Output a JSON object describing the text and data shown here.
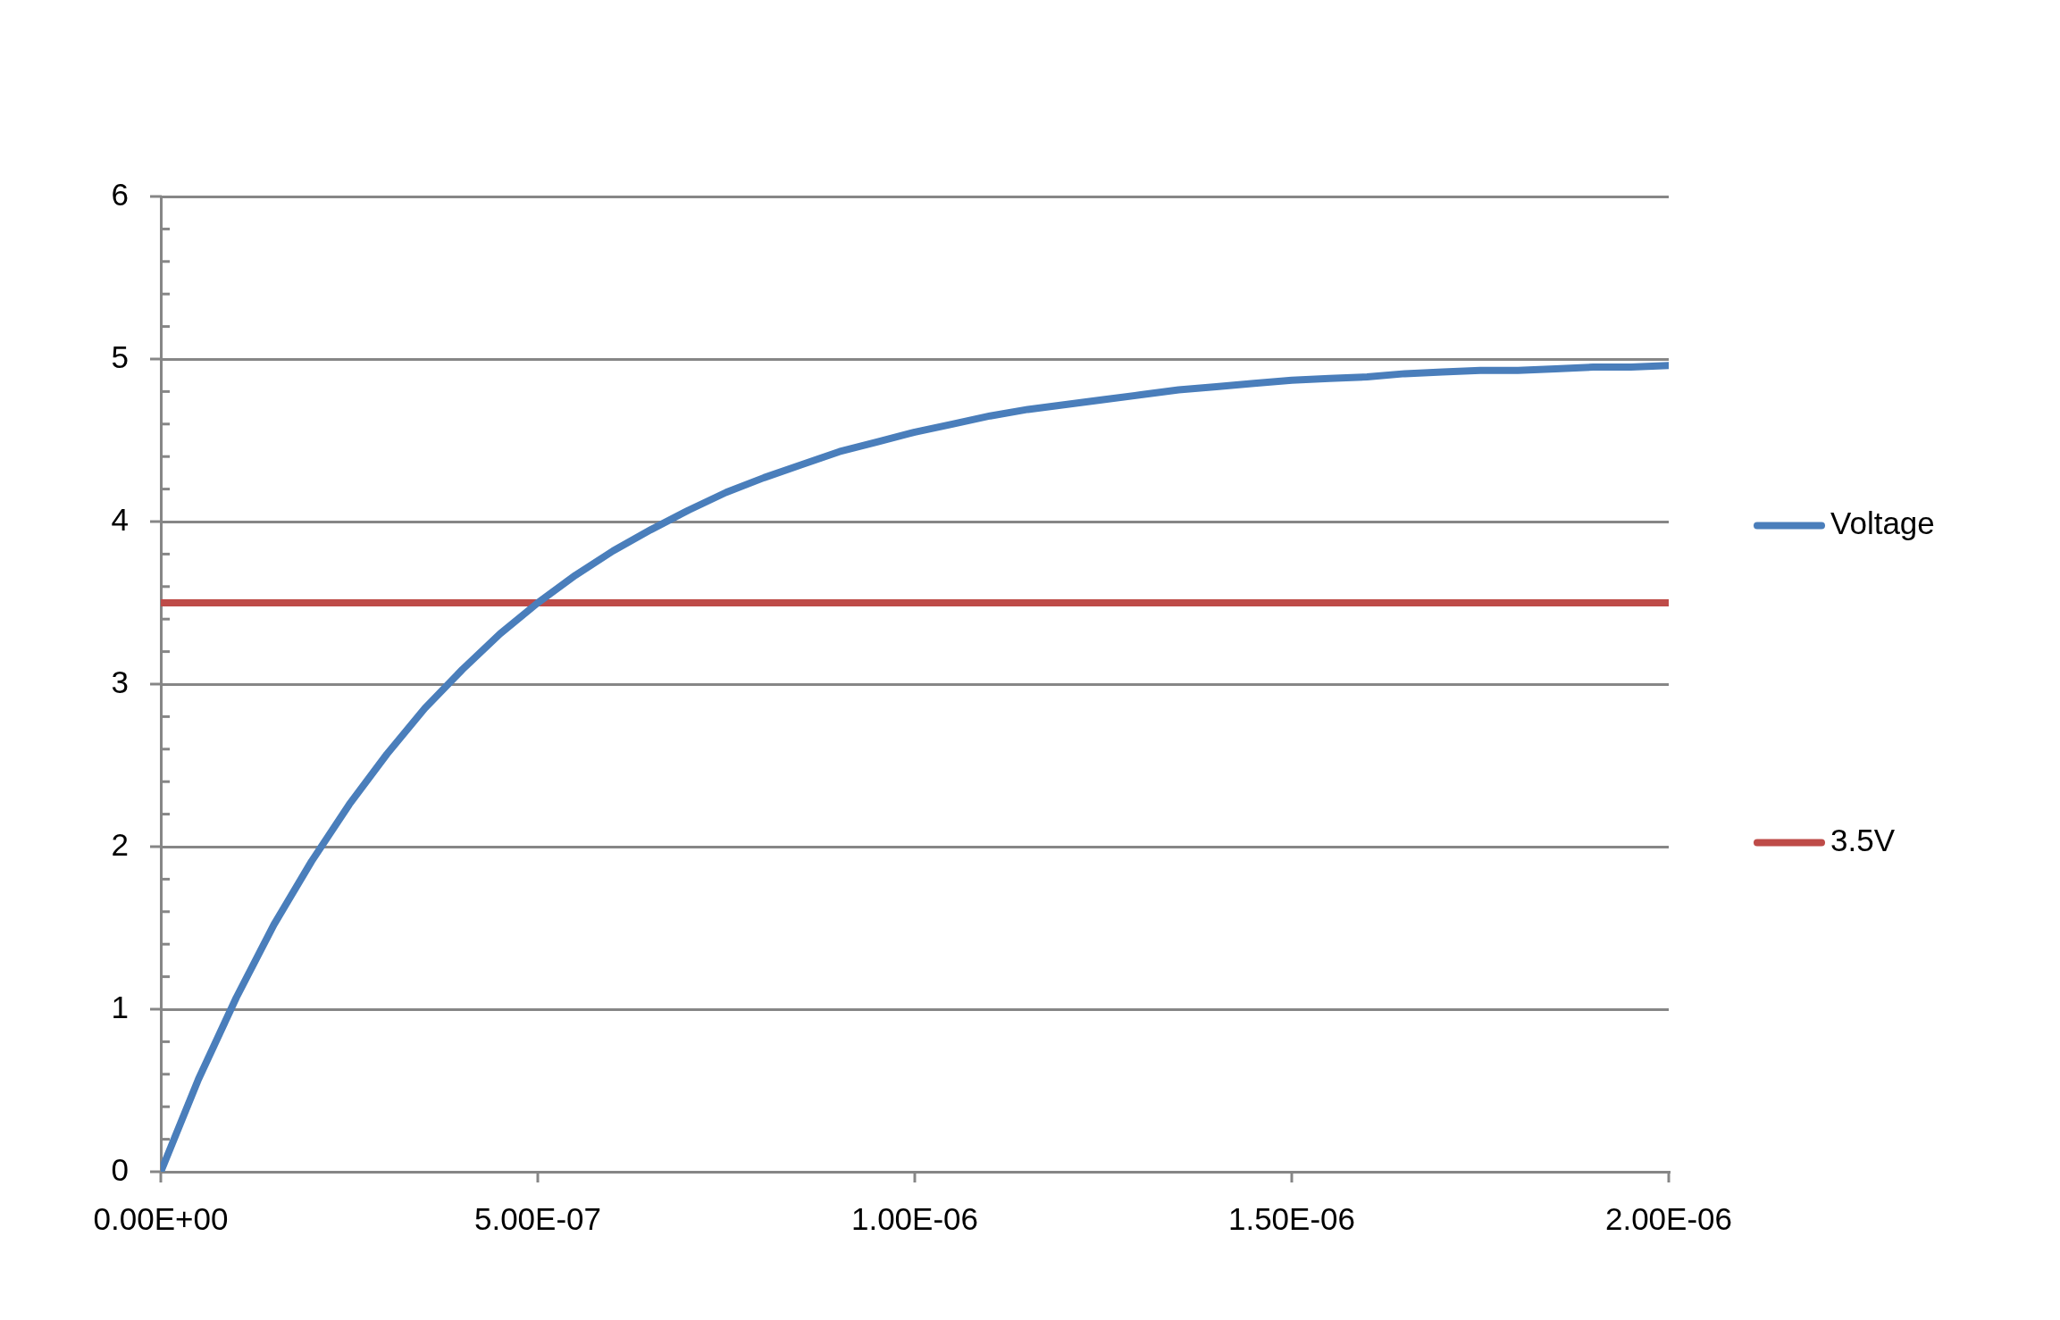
{
  "chart_data": {
    "type": "line",
    "x": [
      0,
      5e-08,
      1e-07,
      1.5e-07,
      2e-07,
      2.5e-07,
      3e-07,
      3.5e-07,
      4e-07,
      4.5e-07,
      5e-07,
      5.5e-07,
      6e-07,
      6.5e-07,
      7e-07,
      7.5e-07,
      8e-07,
      8.5e-07,
      9e-07,
      9.5e-07,
      1e-06,
      1.05e-06,
      1.1e-06,
      1.15e-06,
      1.2e-06,
      1.25e-06,
      1.3e-06,
      1.35e-06,
      1.4e-06,
      1.45e-06,
      1.5e-06,
      1.55e-06,
      1.6e-06,
      1.65e-06,
      1.7e-06,
      1.75e-06,
      1.8e-06,
      1.85e-06,
      1.9e-06,
      1.95e-06,
      2e-06
    ],
    "series": [
      {
        "name": "Voltage",
        "color": "#4a7ebb",
        "values": [
          0,
          0.57,
          1.07,
          1.52,
          1.91,
          2.26,
          2.57,
          2.85,
          3.09,
          3.31,
          3.5,
          3.67,
          3.82,
          3.95,
          4.07,
          4.18,
          4.27,
          4.35,
          4.43,
          4.49,
          4.55,
          4.6,
          4.65,
          4.69,
          4.72,
          4.75,
          4.78,
          4.81,
          4.83,
          4.85,
          4.87,
          4.88,
          4.89,
          4.91,
          4.92,
          4.93,
          4.93,
          4.94,
          4.95,
          4.95,
          4.96
        ]
      },
      {
        "name": "3.5V",
        "color": "#be4b48",
        "x": [
          0,
          2e-06
        ],
        "values": [
          3.5,
          3.5
        ]
      }
    ],
    "xlim": [
      0,
      2e-06
    ],
    "ylim": [
      0,
      6
    ],
    "xticks": [
      {
        "value": 0,
        "label": "0.00E+00"
      },
      {
        "value": 5e-07,
        "label": "5.00E-07"
      },
      {
        "value": 1e-06,
        "label": "1.00E-06"
      },
      {
        "value": 1.5e-06,
        "label": "1.50E-06"
      },
      {
        "value": 2e-06,
        "label": "2.00E-06"
      }
    ],
    "yticks": [
      0,
      {
        "value": 0.2,
        "label": null
      },
      {
        "value": 0.4,
        "label": null
      },
      {
        "value": 0.6,
        "label": null
      },
      {
        "value": 0.8,
        "label": null
      },
      1,
      {
        "value": 1.2,
        "label": null
      },
      {
        "value": 1.4,
        "label": null
      },
      {
        "value": 1.6,
        "label": null
      },
      {
        "value": 1.8,
        "label": null
      },
      2,
      {
        "value": 2.2,
        "label": null
      },
      {
        "value": 2.4,
        "label": null
      },
      {
        "value": 2.6,
        "label": null
      },
      {
        "value": 2.8,
        "label": null
      },
      3,
      {
        "value": 3.2,
        "label": null
      },
      {
        "value": 3.4,
        "label": null
      },
      {
        "value": 3.6,
        "label": null
      },
      {
        "value": 3.8,
        "label": null
      },
      4,
      {
        "value": 4.2,
        "label": null
      },
      {
        "value": 4.4,
        "label": null
      },
      {
        "value": 4.6,
        "label": null
      },
      {
        "value": 4.8,
        "label": null
      },
      5,
      {
        "value": 5.2,
        "label": null
      },
      {
        "value": 5.4,
        "label": null
      },
      {
        "value": 5.6,
        "label": null
      },
      {
        "value": 5.8,
        "label": null
      },
      6
    ],
    "grid": "y",
    "legend": "right"
  }
}
